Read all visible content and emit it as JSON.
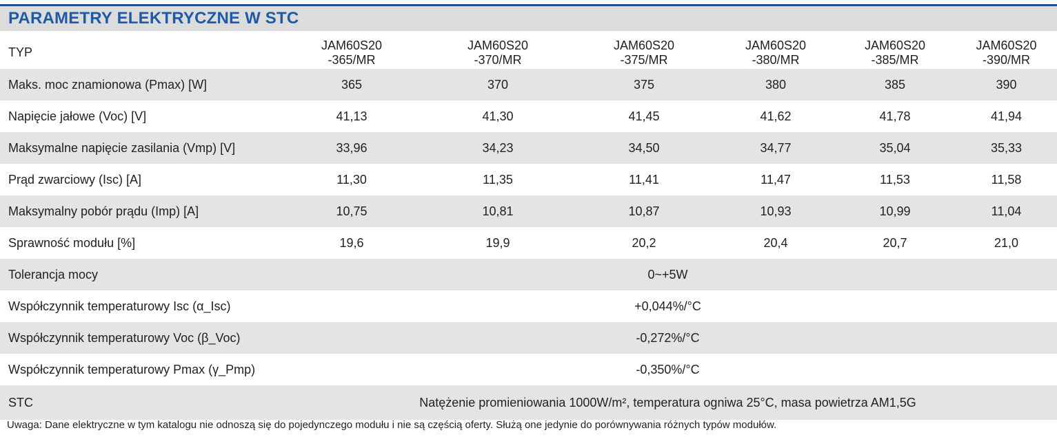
{
  "title": "PARAMETRY ELEKTRYCZNE W STC",
  "table": {
    "header": {
      "label": "TYP",
      "models": [
        {
          "line1": "JAM60S20",
          "line2": "-365/MR"
        },
        {
          "line1": "JAM60S20",
          "line2": "-370/MR"
        },
        {
          "line1": "JAM60S20",
          "line2": "-375/MR"
        },
        {
          "line1": "JAM60S20",
          "line2": "-380/MR"
        },
        {
          "line1": "JAM60S20",
          "line2": "-385/MR"
        },
        {
          "line1": "JAM60S20",
          "line2": "-390/MR"
        }
      ]
    },
    "rows": [
      {
        "label": "Maks. moc znamionowa (Pmax) [W]",
        "values": [
          "365",
          "370",
          "375",
          "380",
          "385",
          "390"
        ]
      },
      {
        "label": "Napięcie jałowe (Voc) [V]",
        "values": [
          "41,13",
          "41,30",
          "41,45",
          "41,62",
          "41,78",
          "41,94"
        ]
      },
      {
        "label": "Maksymalne napięcie zasilania (Vmp) [V]",
        "values": [
          "33,96",
          "34,23",
          "34,50",
          "34,77",
          "35,04",
          "35,33"
        ]
      },
      {
        "label": "Prąd zwarciowy (Isc) [A]",
        "values": [
          "11,30",
          "11,35",
          "11,41",
          "11,47",
          "11,53",
          "11,58"
        ]
      },
      {
        "label": "Maksymalny pobór prądu (Imp) [A]",
        "values": [
          "10,75",
          "10,81",
          "10,87",
          "10,93",
          "10,99",
          "11,04"
        ]
      },
      {
        "label": "Sprawność modułu [%]",
        "values": [
          "19,6",
          "19,9",
          "20,2",
          "20,4",
          "20,7",
          "21,0"
        ]
      }
    ],
    "merged_rows": [
      {
        "label": "Tolerancja mocy",
        "value": "0~+5W"
      },
      {
        "label": "Współczynnik temperaturowy Isc (α_Isc)",
        "value": "+0,044%/°C"
      },
      {
        "label": "Współczynnik temperaturowy Voc (β_Voc)",
        "value": "-0,272%/°C"
      },
      {
        "label": "Współczynnik temperaturowy Pmax (γ_Pmp)",
        "value": "-0,350%/°C"
      },
      {
        "label": "STC",
        "value": "Natężenie promieniowania 1000W/m², temperatura ogniwa 25°C, masa powietrza AM1,5G"
      }
    ]
  },
  "footnote": "Uwaga: Dane elektryczne w tym katalogu nie odnoszą się do pojedynczego modułu i nie są częścią oferty. Służą one jedynie do porównywania różnych typów modułów."
}
